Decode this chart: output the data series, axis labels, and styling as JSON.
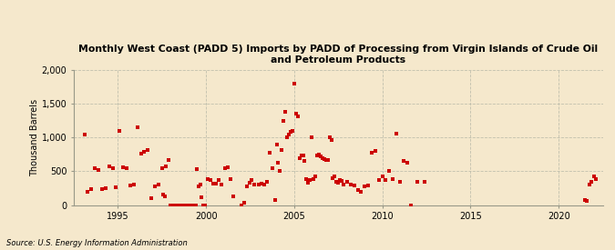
{
  "title": "Monthly West Coast (PADD 5) Imports by PADD of Processing from Virgin Islands of Crude Oil\nand Petroleum Products",
  "ylabel": "Thousand Barrels",
  "source": "Source: U.S. Energy Information Administration",
  "background_color": "#f5e8cc",
  "plot_background_color": "#f5e8cc",
  "dot_color": "#cc0000",
  "dot_size": 5,
  "xlim": [
    1992.5,
    2022.5
  ],
  "ylim": [
    0,
    2000
  ],
  "yticks": [
    0,
    500,
    1000,
    1500,
    2000
  ],
  "xticks": [
    1995,
    2000,
    2005,
    2010,
    2015,
    2020
  ],
  "x": [
    1993.1,
    1993.3,
    1993.5,
    1993.7,
    1993.9,
    1994.1,
    1994.3,
    1994.5,
    1994.7,
    1994.9,
    1995.1,
    1995.3,
    1995.5,
    1995.7,
    1995.9,
    1996.1,
    1996.3,
    1996.5,
    1996.7,
    1996.9,
    1997.1,
    1997.3,
    1997.5,
    1997.7,
    1997.9,
    1997.55,
    1997.65,
    1998.0,
    1998.08,
    1998.17,
    1998.25,
    1998.33,
    1998.42,
    1998.5,
    1998.58,
    1998.67,
    1998.75,
    1998.83,
    1998.92,
    1999.0,
    1999.08,
    1999.17,
    1999.25,
    1999.33,
    1999.42,
    1999.5,
    1999.58,
    1999.67,
    1999.75,
    1999.83,
    1999.92,
    2000.1,
    2000.25,
    2000.4,
    2000.55,
    2000.7,
    2000.85,
    2001.1,
    2001.25,
    2001.4,
    2001.55,
    2002.0,
    2002.15,
    2002.3,
    2002.45,
    2002.6,
    2002.75,
    2003.0,
    2003.15,
    2003.3,
    2003.45,
    2003.6,
    2003.75,
    2003.9,
    2004.0,
    2004.1,
    2004.2,
    2004.3,
    2004.4,
    2004.5,
    2004.6,
    2004.7,
    2004.8,
    2004.9,
    2005.0,
    2005.1,
    2005.2,
    2005.3,
    2005.4,
    2005.5,
    2005.6,
    2005.7,
    2005.8,
    2005.9,
    2006.0,
    2006.1,
    2006.2,
    2006.3,
    2006.4,
    2006.5,
    2006.6,
    2006.7,
    2006.8,
    2006.9,
    2007.0,
    2007.1,
    2007.2,
    2007.3,
    2007.4,
    2007.5,
    2007.6,
    2007.7,
    2007.8,
    2008.0,
    2008.2,
    2008.4,
    2008.6,
    2008.8,
    2009.0,
    2009.2,
    2009.4,
    2009.6,
    2009.8,
    2010.0,
    2010.2,
    2010.4,
    2010.6,
    2010.8,
    2011.0,
    2011.2,
    2011.4,
    2011.6,
    2012.0,
    2012.4,
    2021.5,
    2021.6,
    2021.75,
    2021.85,
    2022.0,
    2022.1
  ],
  "y": [
    1050,
    200,
    230,
    550,
    520,
    230,
    250,
    570,
    540,
    260,
    1100,
    560,
    540,
    290,
    300,
    1150,
    760,
    790,
    810,
    100,
    280,
    300,
    540,
    570,
    660,
    150,
    130,
    0,
    0,
    0,
    0,
    0,
    0,
    0,
    0,
    0,
    0,
    0,
    0,
    0,
    0,
    0,
    0,
    0,
    0,
    530,
    280,
    300,
    120,
    0,
    0,
    390,
    370,
    310,
    320,
    370,
    300,
    550,
    560,
    390,
    130,
    0,
    40,
    280,
    330,
    370,
    300,
    300,
    310,
    300,
    350,
    780,
    550,
    80,
    900,
    630,
    500,
    820,
    1250,
    1380,
    1000,
    1050,
    1090,
    1100,
    1800,
    1350,
    1310,
    700,
    740,
    730,
    650,
    380,
    330,
    370,
    1000,
    390,
    420,
    730,
    750,
    720,
    700,
    680,
    660,
    670,
    1000,
    960,
    400,
    420,
    350,
    330,
    370,
    360,
    300,
    350,
    300,
    290,
    220,
    200,
    280,
    290,
    770,
    800,
    370,
    420,
    370,
    500,
    380,
    1060,
    350,
    650,
    620,
    0,
    350,
    350,
    80,
    60,
    300,
    350,
    420,
    390
  ]
}
